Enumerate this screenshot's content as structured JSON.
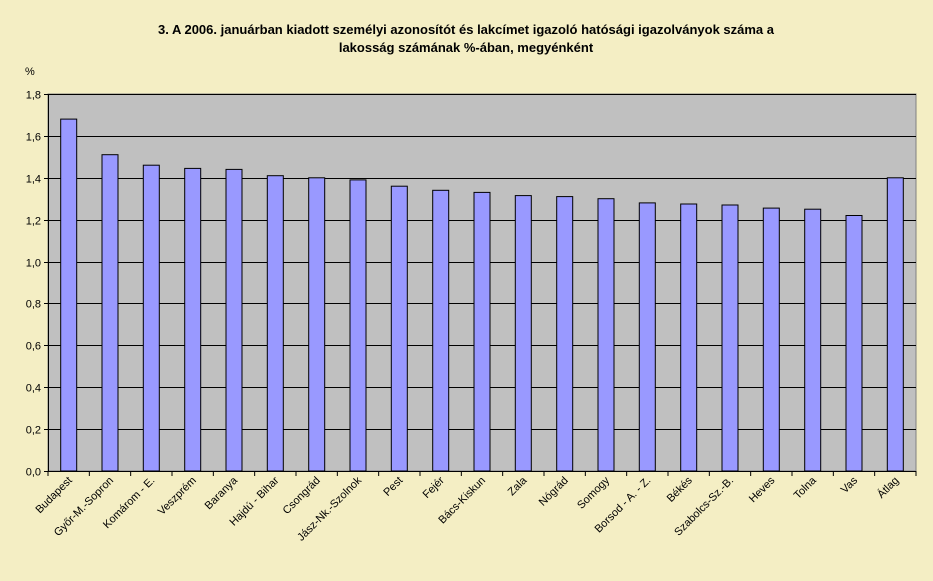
{
  "chart_data": {
    "type": "bar",
    "title_lines": [
      "3. A 2006. januárban kiadott személyi azonosítót és lakcímet igazoló hatósági igazolványok száma a",
      "lakosság számának %-ában, megyénként"
    ],
    "ylabel": "%",
    "xlabel": "",
    "ylim": [
      0,
      1.8
    ],
    "yticks": [
      "0,0",
      "0,2",
      "0,4",
      "0,6",
      "0,8",
      "1,0",
      "1,2",
      "1,4",
      "1,6",
      "1,8"
    ],
    "grid": true,
    "categories": [
      "Budapest",
      "Győr-M.-Sopron",
      "Komárom - E.",
      "Veszprém",
      "Baranya",
      "Hajdú - Bihar",
      "Csongrád",
      "Jász-Nk.-Szolnok",
      "Pest",
      "Fejér",
      "Bács-Kiskun",
      "Zala",
      "Nógrád",
      "Somogy",
      "Borsod - A. - Z.",
      "Békés",
      "Szabolcs-Sz.-B.",
      "Heves",
      "Tolna",
      "Vas",
      "Átlag"
    ],
    "values": [
      1.68,
      1.51,
      1.46,
      1.445,
      1.44,
      1.41,
      1.4,
      1.39,
      1.36,
      1.34,
      1.33,
      1.315,
      1.31,
      1.3,
      1.28,
      1.275,
      1.27,
      1.255,
      1.25,
      1.22,
      1.4
    ],
    "colors": {
      "bar": "#9999ff",
      "bar_border": "#000000",
      "plot_area": "#c0c0c0",
      "background": "#f4eec4",
      "grid": "#000000"
    }
  }
}
